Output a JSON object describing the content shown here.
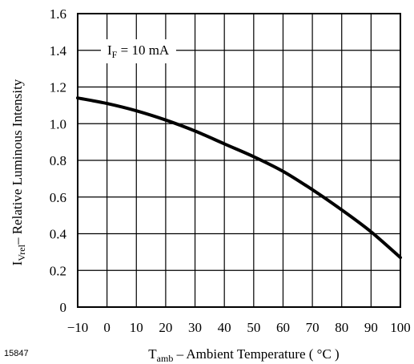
{
  "figure_number": "15847",
  "chart_data": {
    "type": "line",
    "xlabel": {
      "main": "T",
      "sub": "amb",
      "rest": " – Ambient Temperature ( °C )"
    },
    "ylabel": {
      "main": "I",
      "sub": "Vrel",
      "rest": "– Relative Luminous Intensity"
    },
    "annotation": {
      "main": "I",
      "sub": "F",
      "rest": " = 10 mA"
    },
    "xlim": [
      -10,
      100
    ],
    "ylim": [
      0,
      1.6
    ],
    "x_ticks": [
      -10,
      0,
      10,
      20,
      30,
      40,
      50,
      60,
      70,
      80,
      90,
      100
    ],
    "y_ticks": [
      0,
      0.2,
      0.4,
      0.6,
      0.8,
      1.0,
      1.2,
      1.4,
      1.6
    ],
    "y_tick_labels": [
      "0",
      "0.2",
      "0.4",
      "0.6",
      "0.8",
      "1.0",
      "1.2",
      "1.4",
      "1.6"
    ],
    "grid": true,
    "series": [
      {
        "x": [
          -10,
          0,
          10,
          20,
          30,
          40,
          50,
          60,
          70,
          80,
          90,
          100
        ],
        "y": [
          1.14,
          1.11,
          1.07,
          1.02,
          0.96,
          0.89,
          0.82,
          0.74,
          0.64,
          0.53,
          0.41,
          0.27
        ]
      }
    ]
  }
}
